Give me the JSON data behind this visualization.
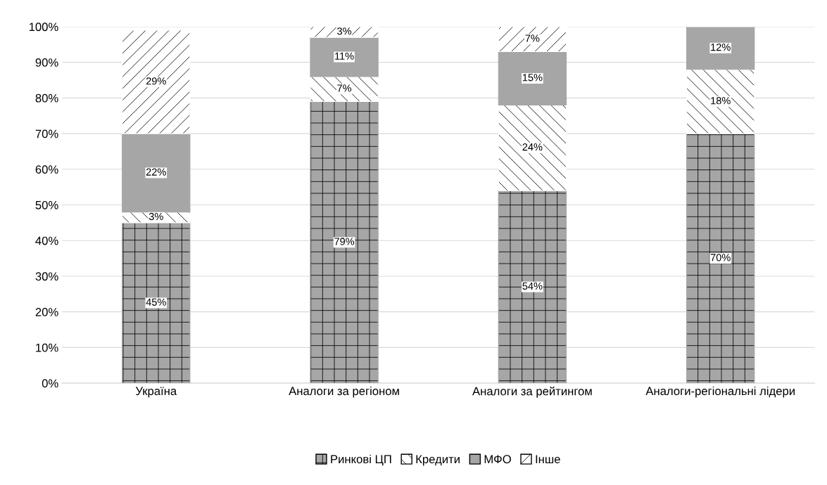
{
  "chart_data": {
    "type": "bar",
    "stacked": true,
    "categories": [
      "Україна",
      "Аналоги за регіоном",
      "Аналоги за рейтингом",
      "Аналоги-регіональні лідери"
    ],
    "series": [
      {
        "name": "Ринкові ЦП",
        "color": "#a6a6a6",
        "values": [
          45,
          79,
          54,
          70
        ],
        "value_labels": [
          "45%",
          "79%",
          "54%",
          "70%"
        ]
      },
      {
        "name": "Кредити",
        "color": "#ffffff",
        "values": [
          3,
          7,
          24,
          18
        ],
        "value_labels": [
          "3%",
          "7%",
          "24%",
          "18%"
        ]
      },
      {
        "name": "МФО",
        "color": "#a6a6a6",
        "values": [
          22,
          11,
          15,
          12
        ],
        "value_labels": [
          "22%",
          "11%",
          "15%",
          "12%"
        ]
      },
      {
        "name": "Інше",
        "color": "#ffffff",
        "values": [
          29,
          3,
          7,
          0
        ],
        "value_labels": [
          "29%",
          "3%",
          "7%",
          null
        ]
      }
    ],
    "ylim": [
      0,
      100
    ],
    "yticks": [
      {
        "value": 0,
        "label": "0%"
      },
      {
        "value": 10,
        "label": "10%"
      },
      {
        "value": 20,
        "label": "20%"
      },
      {
        "value": 30,
        "label": "30%"
      },
      {
        "value": 40,
        "label": "40%"
      },
      {
        "value": 50,
        "label": "50%"
      },
      {
        "value": 60,
        "label": "60%"
      },
      {
        "value": 70,
        "label": "70%"
      },
      {
        "value": 80,
        "label": "80%"
      },
      {
        "value": 90,
        "label": "90%"
      },
      {
        "value": 100,
        "label": "100%"
      }
    ],
    "grid": "y",
    "legend": "bottom"
  }
}
